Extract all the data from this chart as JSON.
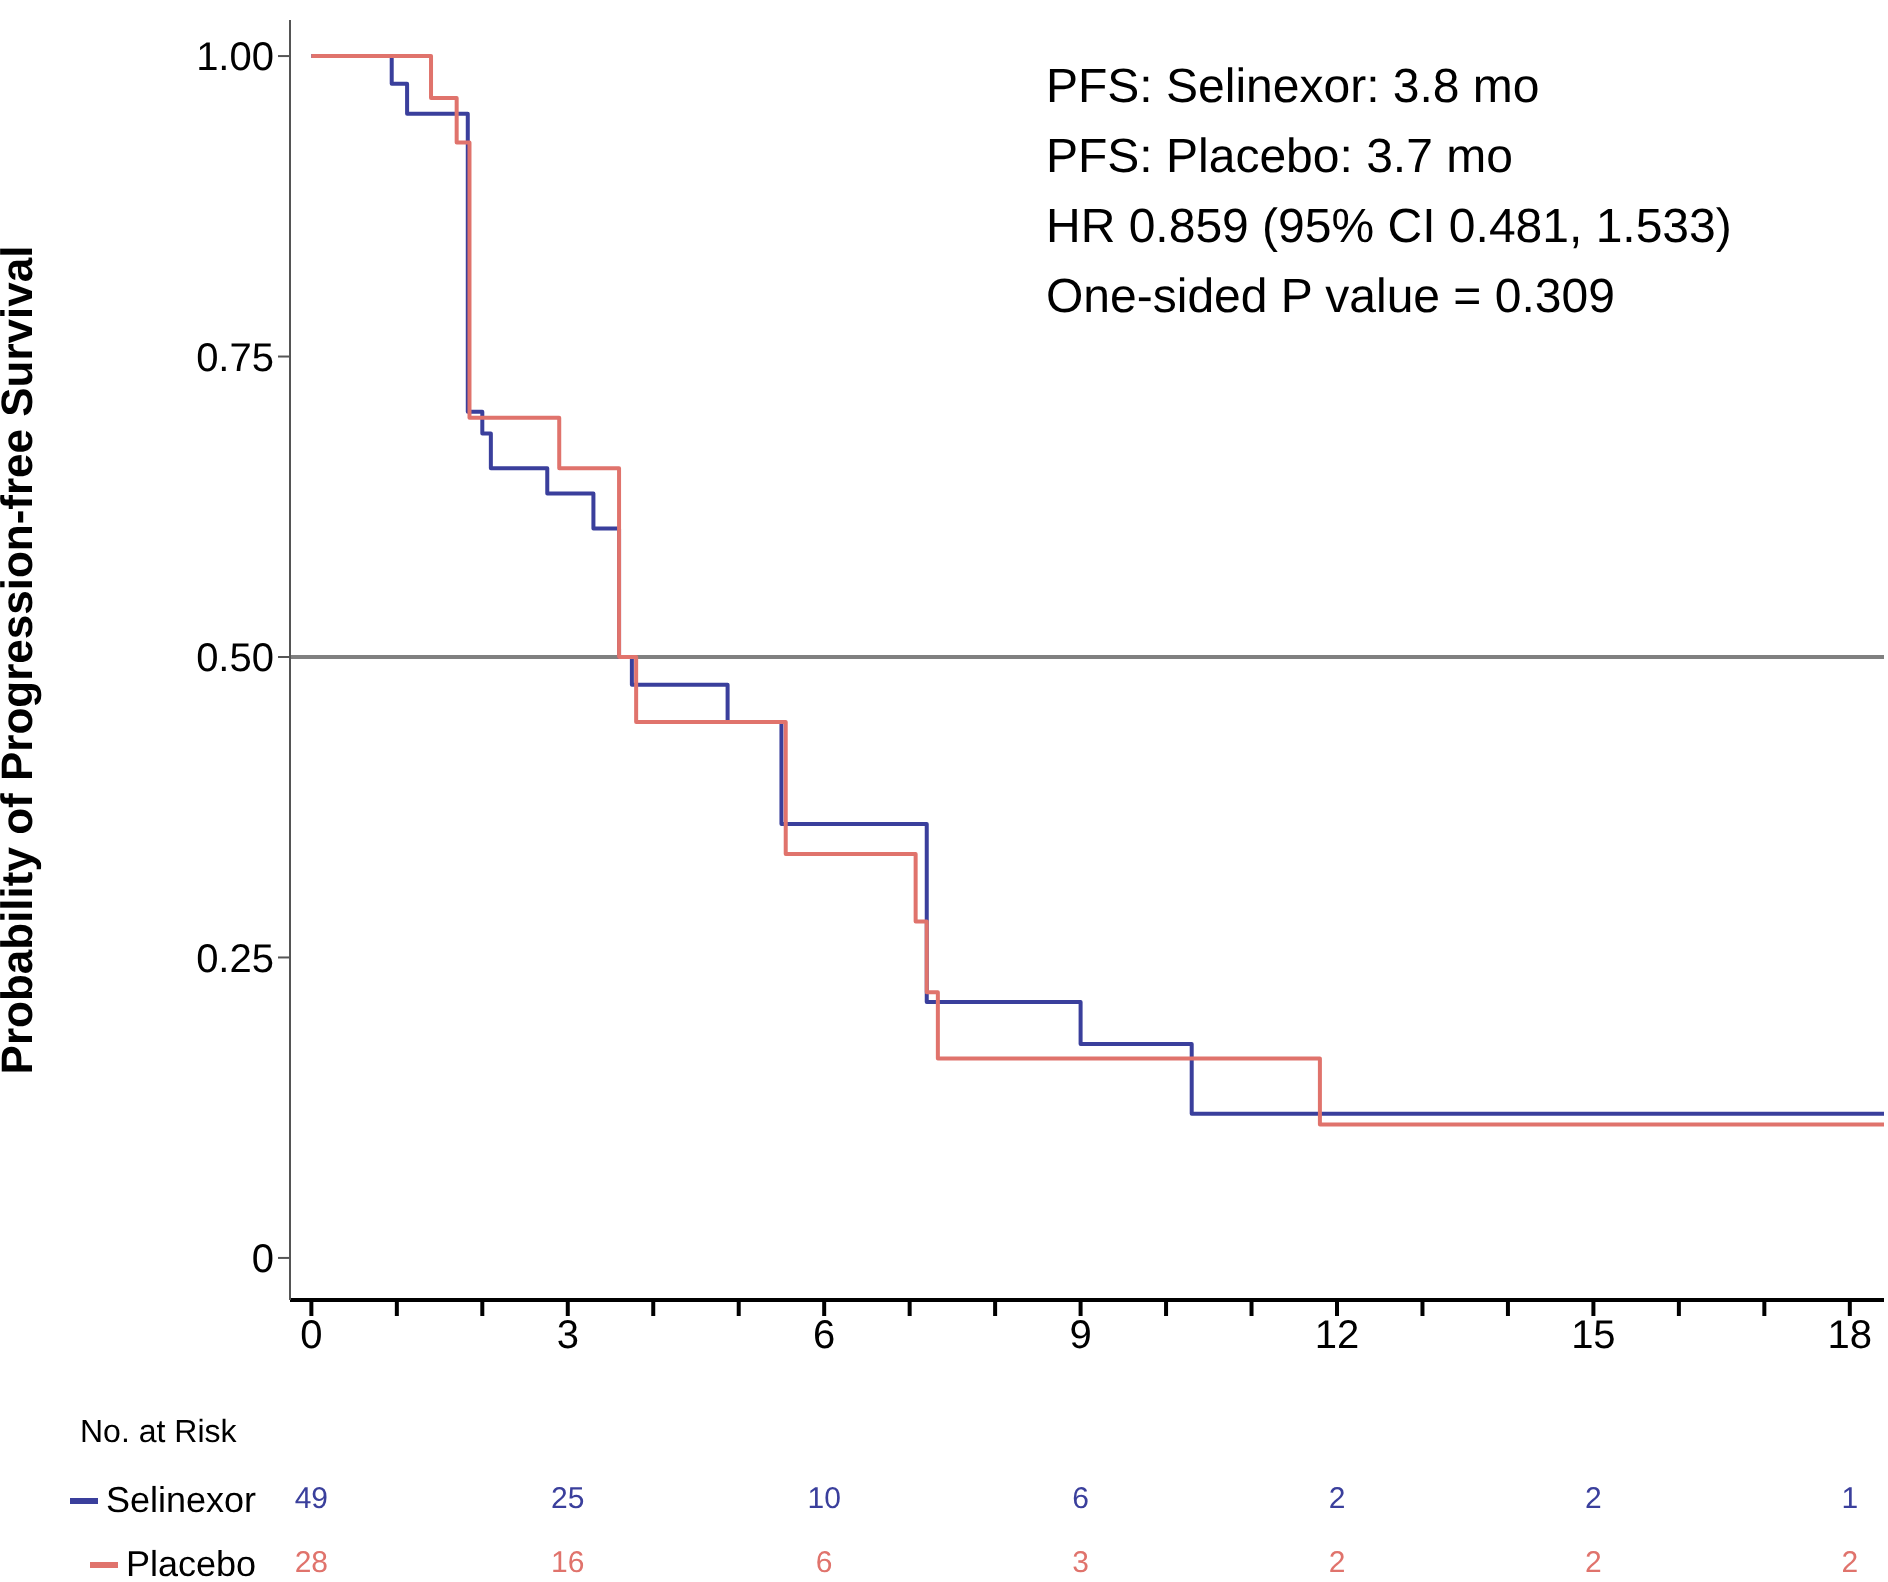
{
  "chart_data": {
    "type": "step",
    "ylabel": "Probability of Progression-free Survival",
    "xlim": [
      -0.25,
      18.4
    ],
    "ylim": [
      -0.035,
      1.03
    ],
    "xticks": [
      0,
      {
        "value": 1,
        "label": null
      },
      {
        "value": 2,
        "label": null
      },
      3,
      {
        "value": 4,
        "label": null
      },
      {
        "value": 5,
        "label": null
      },
      6,
      {
        "value": 7,
        "label": null
      },
      {
        "value": 8,
        "label": null
      },
      9,
      {
        "value": 10,
        "label": null
      },
      {
        "value": 11,
        "label": null
      },
      12,
      {
        "value": 13,
        "label": null
      },
      {
        "value": 14,
        "label": null
      },
      15,
      {
        "value": 16,
        "label": null
      },
      {
        "value": 17,
        "label": null
      },
      18
    ],
    "yticks": [
      0,
      {
        "value": 0.25,
        "label": "0.25"
      },
      {
        "value": 0.5,
        "label": "0.50"
      },
      {
        "value": 0.75,
        "label": "0.75"
      },
      {
        "value": 1,
        "label": "1.00"
      }
    ],
    "grid": false,
    "legend": "bottom left",
    "ref_lines": [
      {
        "axis": "y",
        "value": 0.5,
        "color": "#808080"
      }
    ],
    "series": [
      {
        "name": "Selinexor",
        "color": "#3a3f9c",
        "x": [
          0,
          0.94,
          1.12,
          1.83,
          2.0,
          2.1,
          2.76,
          3.3,
          3.6,
          3.75,
          4.87,
          5.5,
          7.2,
          9.0,
          10.3,
          18.4
        ],
        "values": [
          1,
          0.977,
          0.952,
          0.704,
          0.686,
          0.657,
          0.636,
          0.607,
          0.5,
          0.477,
          0.446,
          0.361,
          0.213,
          0.178,
          0.12,
          0.12
        ]
      },
      {
        "name": "Placebo",
        "color": "#e0736c",
        "x": [
          0,
          1.4,
          1.7,
          1.85,
          2.9,
          3.6,
          3.8,
          5.55,
          7.07,
          7.2,
          7.33,
          11.8,
          18.4
        ],
        "values": [
          1,
          0.965,
          0.928,
          0.699,
          0.657,
          0.5,
          0.446,
          0.336,
          0.28,
          0.221,
          0.166,
          0.111,
          0.111
        ]
      }
    ],
    "annotations": [
      "PFS: Selinexor: 3.8 mo",
      "PFS: Placebo: 3.7 mo",
      "HR 0.859 (95% CI 0.481, 1.533)",
      "One-sided P value = 0.309",
      "No. at Risk",
      "49",
      "25",
      "10",
      "6",
      "2",
      "2",
      "1",
      "28",
      "16",
      "6",
      "3",
      "2",
      "2",
      "2"
    ]
  }
}
